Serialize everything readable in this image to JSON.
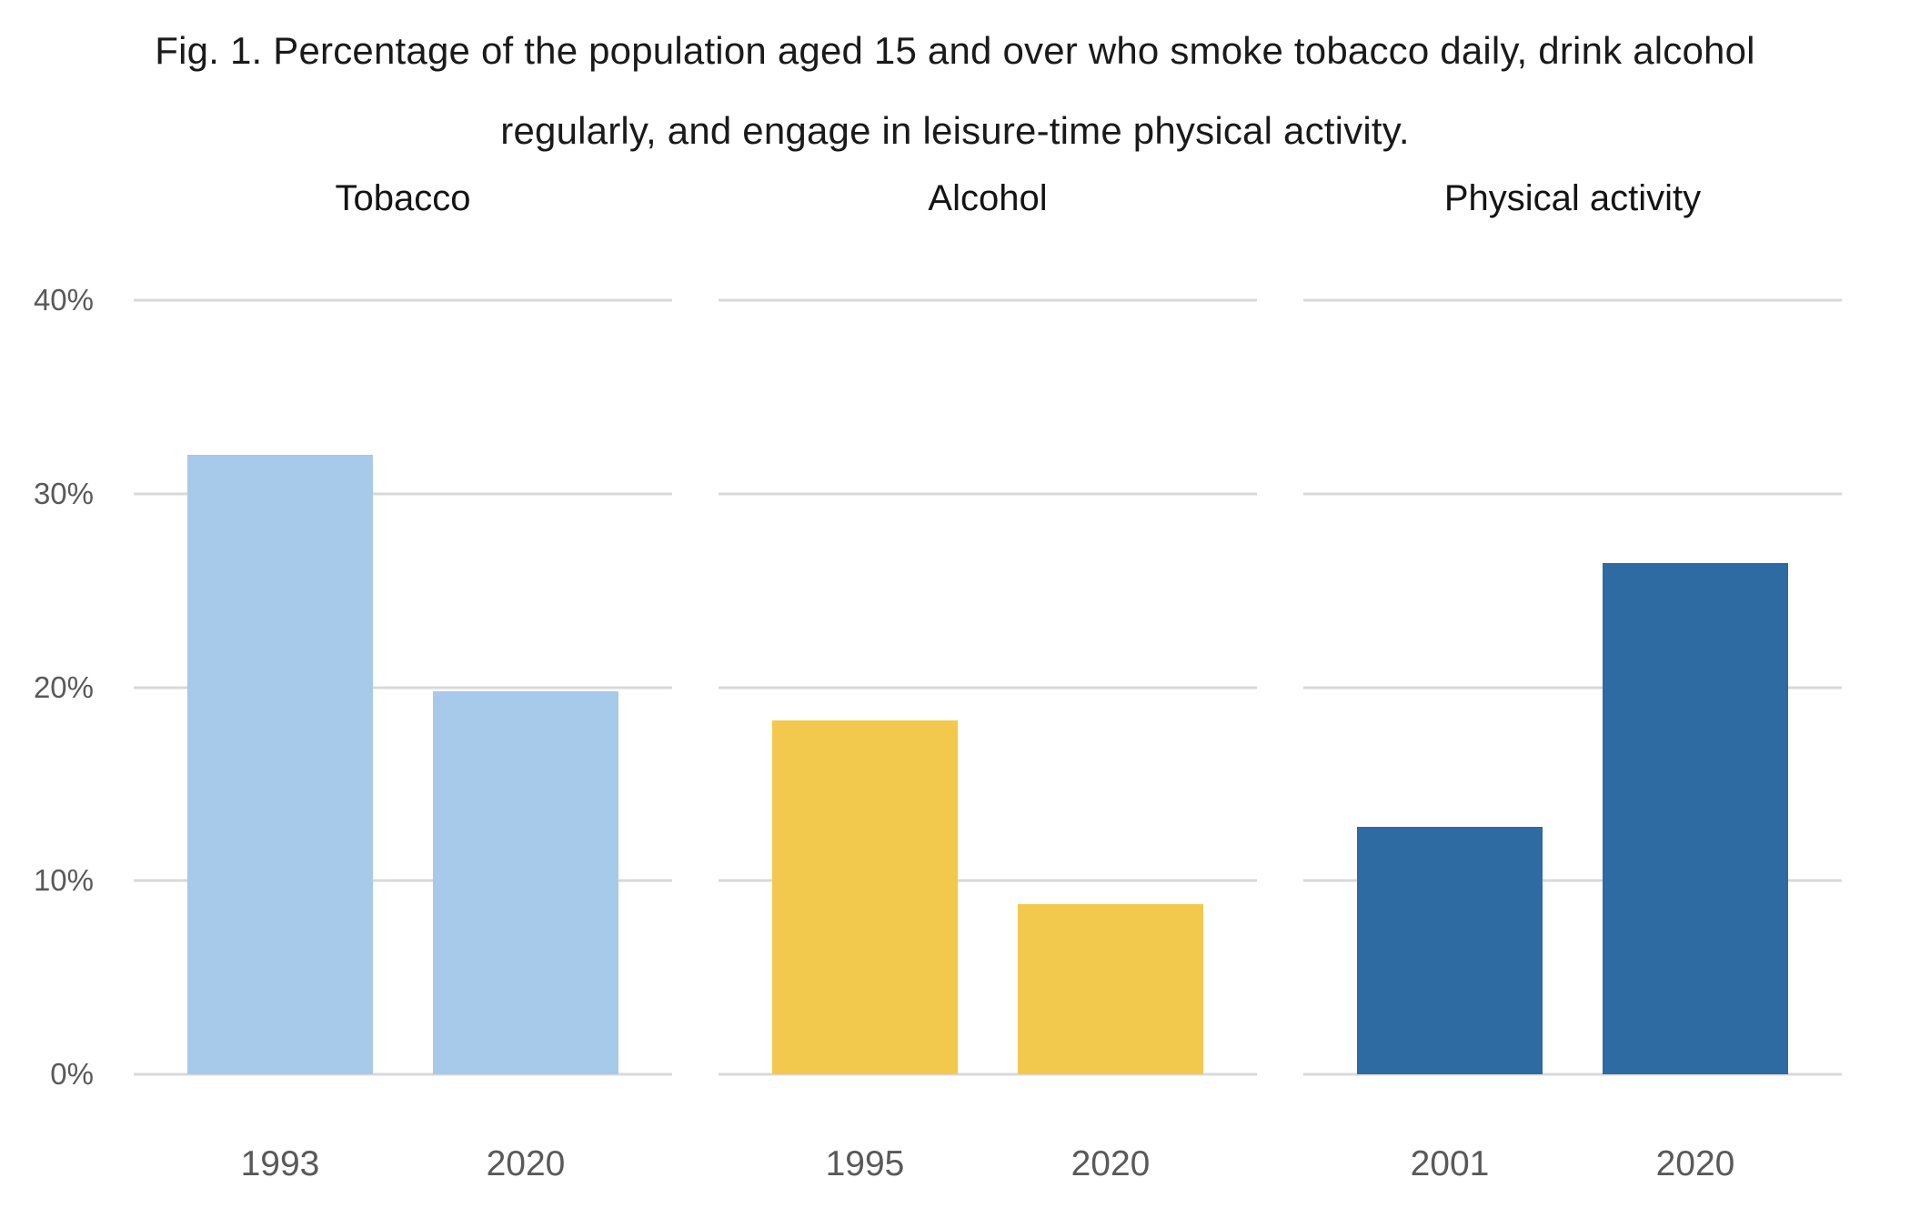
{
  "figure": {
    "title": "Fig. 1. Percentage of the population aged 15 and over who smoke tobacco daily, drink alcohol regularly, and engage in leisure-time physical activity.",
    "title_lines": [
      "Fig. 1. Percentage of the population aged 15 and over who smoke tobacco daily, drink alcohol",
      "regularly, and engage in leisure-time physical activity."
    ]
  },
  "colors": {
    "tobacco_bar": "#A7C9EA",
    "alcohol_bar": "#F2C94C",
    "physical_activity_bar": "#2E6BA3",
    "gridline": "#D9D9D9",
    "tick_text": "#595959",
    "title_text": "#1A1A1A"
  },
  "chart_data": {
    "type": "bar",
    "title": "Fig. 1. Percentage of the population aged 15 and over who smoke tobacco daily, drink alcohol regularly, and engage in leisure-time physical activity.",
    "xlabel": "",
    "ylabel": "",
    "ylim": [
      0,
      40
    ],
    "grid": "horizontal-only",
    "legend": "none",
    "y_ticks": [
      {
        "label": "40%",
        "value": 40
      },
      {
        "label": "30%",
        "value": 30
      },
      {
        "label": "20%",
        "value": 20
      },
      {
        "label": "10%",
        "value": 10
      },
      {
        "label": "0%",
        "value": 0
      }
    ],
    "panels": [
      {
        "title": "Tobacco",
        "color": "#A7C9EA",
        "categories": [
          "1993",
          "2020"
        ],
        "values": [
          32,
          19.8
        ]
      },
      {
        "title": "Alcohol",
        "color": "#F2C94C",
        "categories": [
          "1995",
          "2020"
        ],
        "values": [
          18.3,
          8.8
        ]
      },
      {
        "title": "Physical activity",
        "color": "#2E6BA3",
        "categories": [
          "2001",
          "2020"
        ],
        "values": [
          12.8,
          26.4
        ]
      }
    ]
  }
}
